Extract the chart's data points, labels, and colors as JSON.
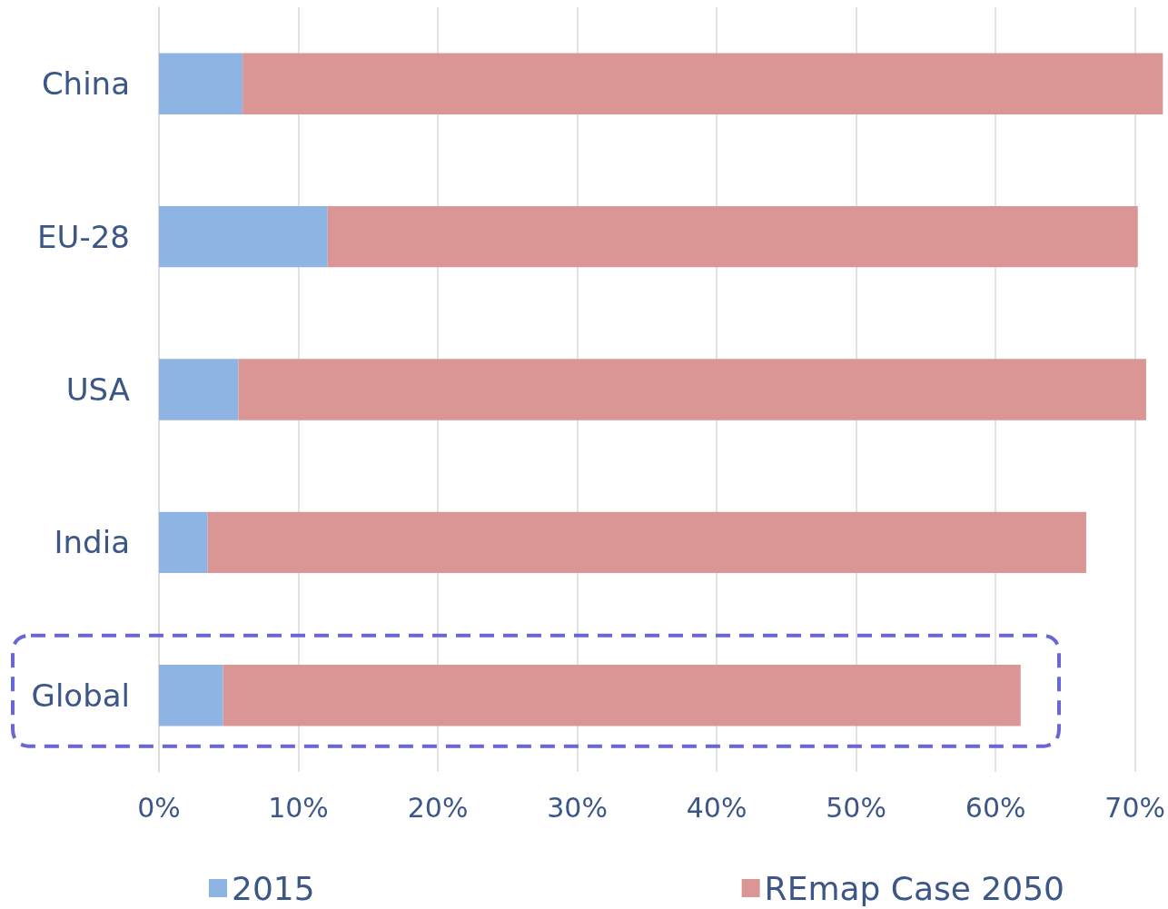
{
  "chart_data": {
    "type": "bar",
    "orientation": "horizontal",
    "stacked": true,
    "categories": [
      "China",
      "EU-28",
      "USA",
      "India",
      "Global"
    ],
    "series": [
      {
        "name": "2015",
        "color": "#8eb4e3",
        "values": [
          6.0,
          12.1,
          5.7,
          3.5,
          4.6
        ]
      },
      {
        "name": "REmap Case 2050",
        "color": "#d99694",
        "values": [
          66.1,
          58.1,
          65.1,
          63.0,
          57.2
        ]
      }
    ],
    "xlim": [
      0,
      72
    ],
    "xticks": [
      {
        "value": 0,
        "label": "0%"
      },
      {
        "value": 10,
        "label": "10%"
      },
      {
        "value": 20,
        "label": "20%"
      },
      {
        "value": 30,
        "label": "30%"
      },
      {
        "value": 40,
        "label": "40%"
      },
      {
        "value": 50,
        "label": "50%"
      },
      {
        "value": 60,
        "label": "60%"
      },
      {
        "value": 70,
        "label": "70%"
      }
    ],
    "grid": "x",
    "legend": "bottom"
  }
}
